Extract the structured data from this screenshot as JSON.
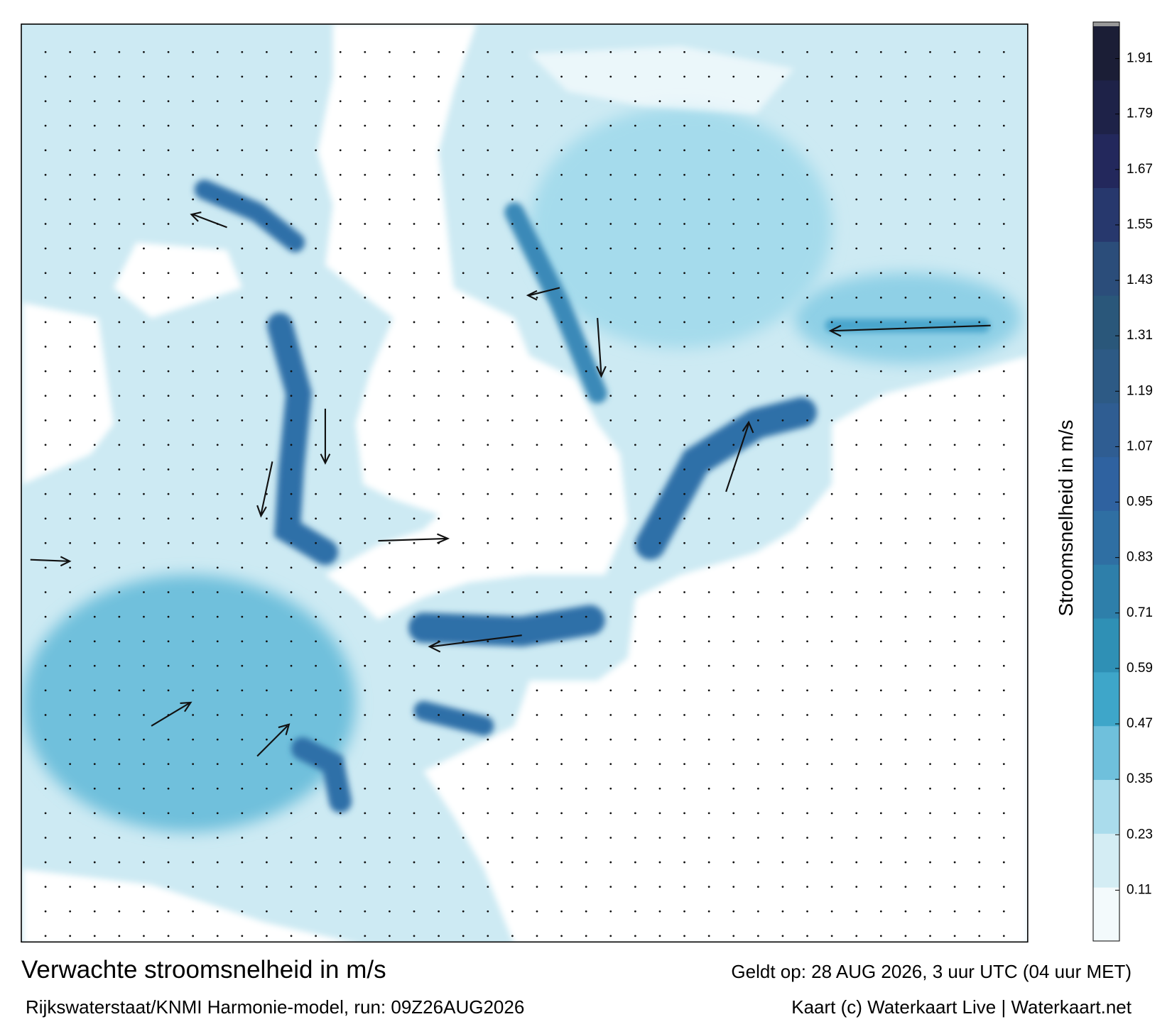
{
  "title": "Verwachte stroomsnelheid in m/s",
  "subtitle": "Rijkswaterstaat/KNMI Harmonie-model, run: 09Z26AUG2026",
  "valid": "Geldt op: 28 AUG 2026, 3 uur UTC (04 uur MET)",
  "credit": "Kaart (c) Waterkaart Live | Waterkaart.net",
  "colorbar": {
    "label": "Stroomsnelheid in m/s",
    "lim": [
      0,
      1.98
    ],
    "ticks": [
      0.11,
      0.23,
      0.35,
      0.47,
      0.59,
      0.71,
      0.83,
      0.95,
      1.07,
      1.19,
      1.31,
      1.43,
      1.55,
      1.67,
      1.79,
      1.91
    ],
    "colors": [
      "#f3fafc",
      "#d4edf4",
      "#aadcec",
      "#6fc0dc",
      "#3ea6c9",
      "#2f90b5",
      "#2e7faa",
      "#2f6fa3",
      "#2f62a0",
      "#2f5d92",
      "#2d5a85",
      "#2a577a",
      "#2b4d7a",
      "#27386d",
      "#23285c",
      "#1e2248",
      "#1b1e36"
    ]
  }
}
